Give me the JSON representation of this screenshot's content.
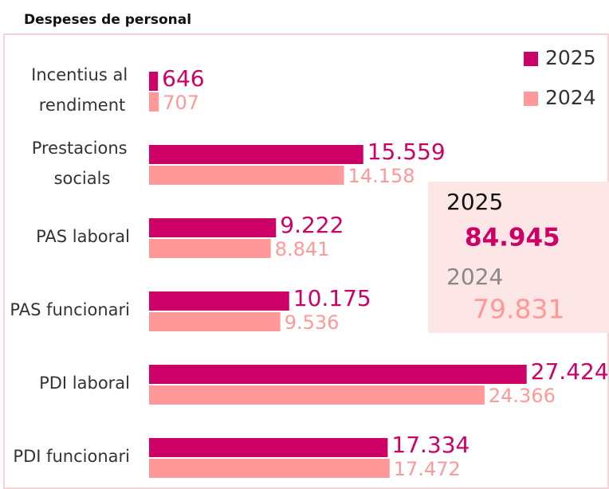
{
  "chart_data": {
    "type": "hbar",
    "title": "Despeses de personal",
    "categories": [
      "Incentius al rendiment",
      "Prestacions socials",
      "PAS laboral",
      "PAS funcionari",
      "PDI laboral",
      "PDI funcionari"
    ],
    "series": [
      {
        "name": "2025",
        "color": "#cc0066",
        "values": [
          646,
          15559,
          9222,
          10175,
          27424,
          17334
        ],
        "value_labels": [
          "646",
          "15.559",
          "9.222",
          "10.175",
          "27.424",
          "17.334"
        ]
      },
      {
        "name": "2024",
        "color": "#ff9999",
        "values": [
          707,
          14158,
          8841,
          9536,
          24366,
          17472
        ],
        "value_labels": [
          "707",
          "14.158",
          "8.841",
          "9.536",
          "24.366",
          "17.472"
        ]
      }
    ],
    "xlim": [
      0,
      33000
    ],
    "legend": "top-right",
    "summary": [
      {
        "name": "2025",
        "value": "84.945"
      },
      {
        "name": "2024",
        "value": "79.831"
      }
    ]
  }
}
